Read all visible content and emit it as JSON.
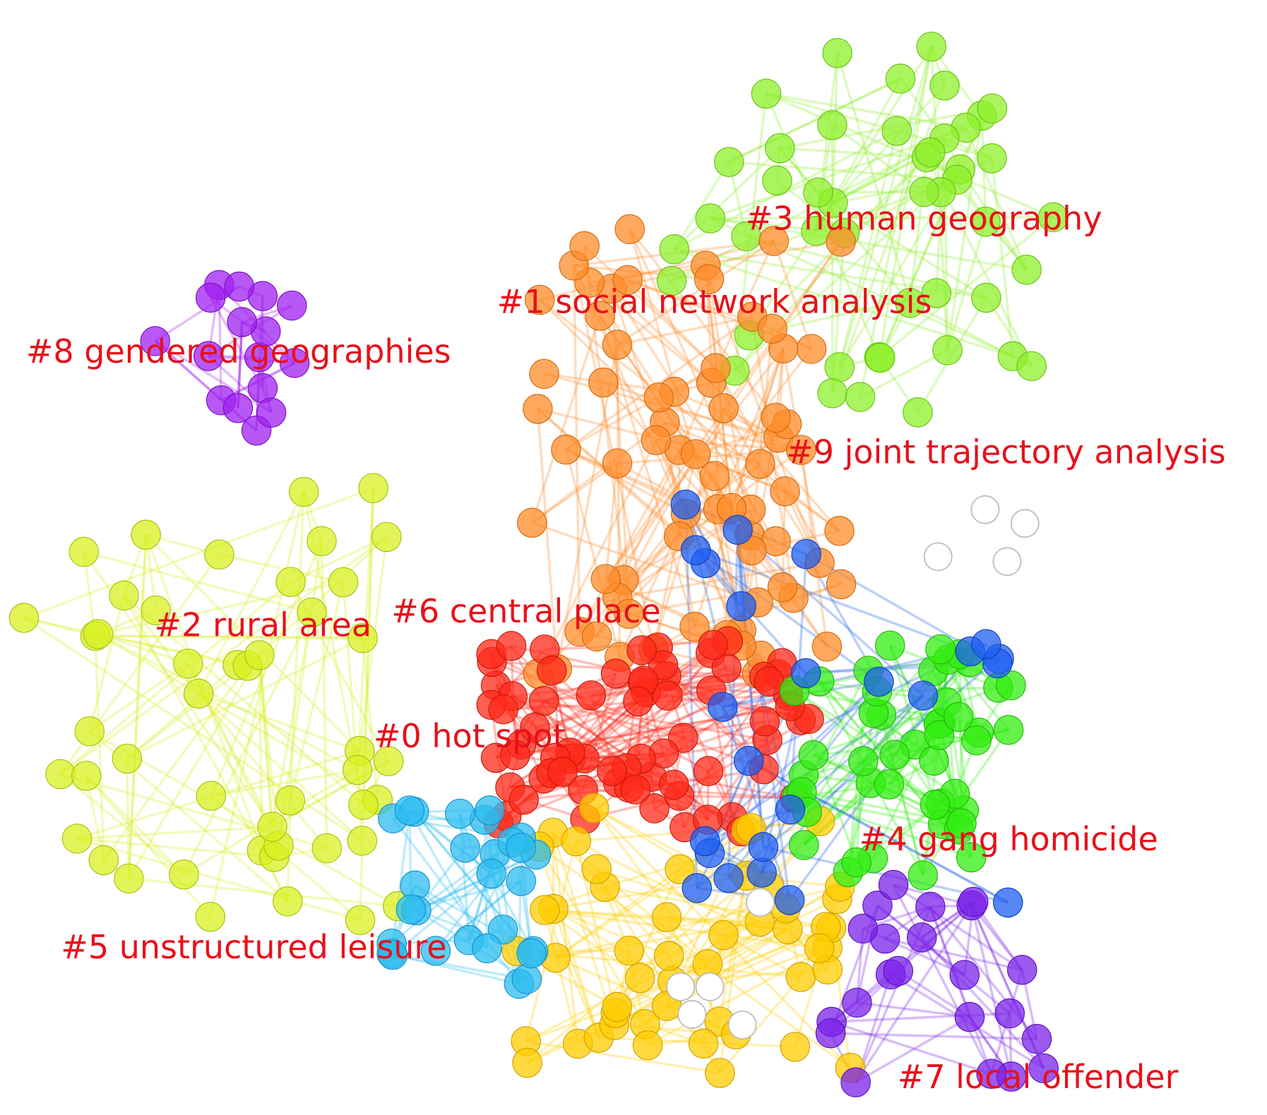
{
  "clusters": [
    {
      "label": "#0 hot spot"
    },
    {
      "label": "#1 social network analysis"
    },
    {
      "label": "#2 rural area"
    },
    {
      "label": "#3 human geography"
    },
    {
      "label": "#4 gang homicide"
    },
    {
      "label": "#5 unstructured leisure"
    },
    {
      "label": "#6 central place"
    },
    {
      "label": "#7 local offender"
    },
    {
      "label": "#8 gendered geographies"
    },
    {
      "label": "#9 joint trajectory analysis"
    }
  ]
}
